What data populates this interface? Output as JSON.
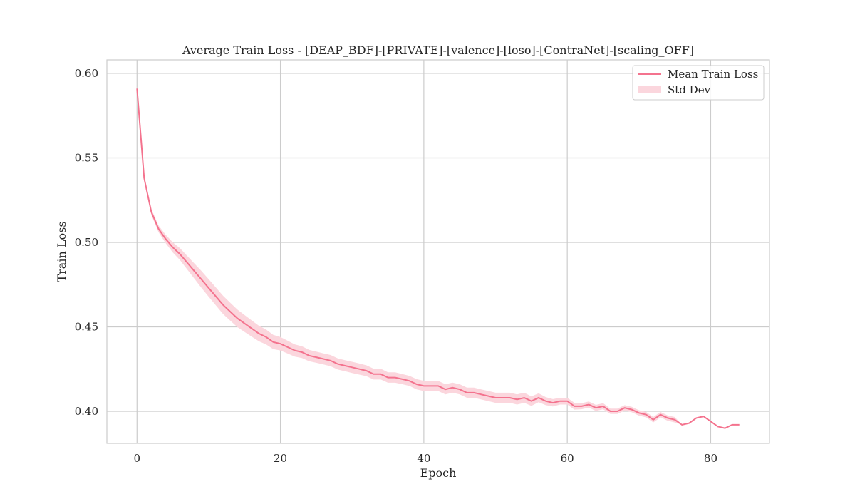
{
  "chart_data": {
    "type": "line",
    "title": "Average Train Loss - [DEAP_BDF]-[PRIVATE]-[valence]-[loso]-[ContraNet]-[scaling_OFF]",
    "xlabel": "Epoch",
    "ylabel": "Train Loss",
    "xlim": [
      -4.2,
      88.2
    ],
    "ylim": [
      0.381,
      0.608
    ],
    "xticks": [
      0,
      20,
      40,
      60,
      80
    ],
    "yticks": [
      0.4,
      0.45,
      0.5,
      0.55,
      0.6
    ],
    "xtick_labels": [
      "0",
      "20",
      "40",
      "60",
      "80"
    ],
    "ytick_labels": [
      "0.40",
      "0.45",
      "0.50",
      "0.55",
      "0.60"
    ],
    "grid": true,
    "legend": {
      "placement": "top-right",
      "entries": [
        "Mean Train Loss",
        "Std Dev"
      ]
    },
    "colors": {
      "line": "#f4738e",
      "band": "#fbd6dd"
    },
    "x": [
      0,
      1,
      2,
      3,
      4,
      5,
      6,
      7,
      8,
      9,
      10,
      11,
      12,
      13,
      14,
      15,
      16,
      17,
      18,
      19,
      20,
      21,
      22,
      23,
      24,
      25,
      26,
      27,
      28,
      29,
      30,
      31,
      32,
      33,
      34,
      35,
      36,
      37,
      38,
      39,
      40,
      41,
      42,
      43,
      44,
      45,
      46,
      47,
      48,
      49,
      50,
      51,
      52,
      53,
      54,
      55,
      56,
      57,
      58,
      59,
      60,
      61,
      62,
      63,
      64,
      65,
      66,
      67,
      68,
      69,
      70,
      71,
      72,
      73,
      74,
      75,
      76,
      77,
      78,
      79,
      80,
      81,
      82,
      83,
      84
    ],
    "series": [
      {
        "name": "Mean Train Loss",
        "values": [
          0.591,
          0.538,
          0.518,
          0.508,
          0.502,
          0.497,
          0.493,
          0.488,
          0.483,
          0.478,
          0.473,
          0.468,
          0.463,
          0.459,
          0.455,
          0.452,
          0.449,
          0.446,
          0.444,
          0.441,
          0.44,
          0.438,
          0.436,
          0.435,
          0.433,
          0.432,
          0.431,
          0.43,
          0.428,
          0.427,
          0.426,
          0.425,
          0.424,
          0.422,
          0.422,
          0.42,
          0.42,
          0.419,
          0.418,
          0.416,
          0.415,
          0.415,
          0.415,
          0.413,
          0.414,
          0.413,
          0.411,
          0.411,
          0.41,
          0.409,
          0.408,
          0.408,
          0.408,
          0.407,
          0.408,
          0.406,
          0.408,
          0.406,
          0.405,
          0.406,
          0.406,
          0.403,
          0.403,
          0.404,
          0.402,
          0.403,
          0.4,
          0.4,
          0.402,
          0.401,
          0.399,
          0.398,
          0.395,
          0.398,
          0.396,
          0.395,
          0.392,
          0.393,
          0.396,
          0.397,
          0.394,
          0.391,
          0.39,
          0.392,
          0.392
        ],
        "std": [
          0.0012,
          0.0015,
          0.0018,
          0.002,
          0.0025,
          0.003,
          0.0035,
          0.004,
          0.0045,
          0.005,
          0.0052,
          0.0053,
          0.0054,
          0.0053,
          0.0052,
          0.005,
          0.0048,
          0.0046,
          0.0044,
          0.0042,
          0.004,
          0.0038,
          0.0036,
          0.0035,
          0.0034,
          0.0033,
          0.0033,
          0.0033,
          0.0033,
          0.0033,
          0.0033,
          0.0033,
          0.0032,
          0.0032,
          0.0032,
          0.0031,
          0.0031,
          0.003,
          0.003,
          0.003,
          0.003,
          0.003,
          0.003,
          0.003,
          0.003,
          0.003,
          0.003,
          0.003,
          0.003,
          0.003,
          0.003,
          0.003,
          0.003,
          0.003,
          0.003,
          0.0028,
          0.0026,
          0.0024,
          0.0022,
          0.002,
          0.002,
          0.002,
          0.0018,
          0.0018,
          0.0018,
          0.0018,
          0.0016,
          0.0016,
          0.0016,
          0.0016,
          0.0016,
          0.0016,
          0.0016,
          0.0016,
          0.0016,
          0.0016,
          0.0,
          0.0,
          0.0,
          0.0,
          0.0,
          0.0,
          0.0,
          0.0,
          0.0
        ]
      }
    ]
  }
}
